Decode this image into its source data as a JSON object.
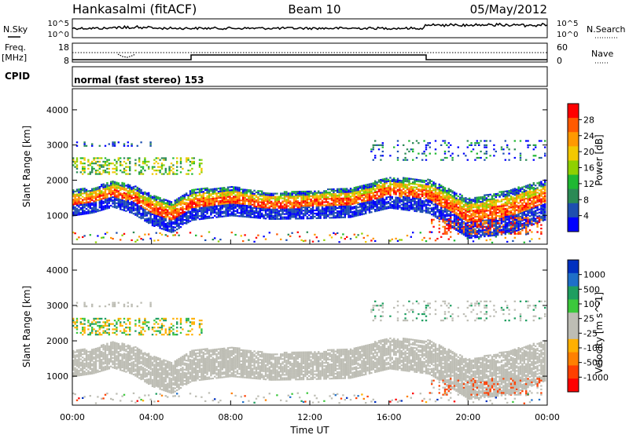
{
  "header": {
    "station": "Hankasalmi (fitACF)",
    "beam": "Beam 10",
    "date": "05/May/2012"
  },
  "noise_panel": {
    "left_label": "N.Sky",
    "right_label": "N.Search",
    "left_ticks": [
      "10^5",
      "10^0"
    ],
    "right_ticks": [
      "10^5",
      "10^0"
    ]
  },
  "freq_panel": {
    "left_label_1": "Freq.",
    "left_label_2": "[MHz]",
    "right_label": "Nave",
    "left_ticks": [
      "18",
      "8"
    ],
    "right_ticks": [
      "60",
      "0"
    ]
  },
  "cpid": {
    "label": "CPID",
    "text": "normal (fast stereo) 153"
  },
  "axes": {
    "ylabel": "Slant Range [km]",
    "xlabel": "Time UT",
    "yticks": [
      "4000",
      "3000",
      "2000",
      "1000"
    ],
    "xticks": [
      "00:00",
      "04:00",
      "08:00",
      "12:00",
      "16:00",
      "20:00",
      "00:00"
    ]
  },
  "colors": {
    "ground_scatter": "#bdbdb4"
  },
  "chart_data": [
    {
      "type": "heatmap",
      "name": "power",
      "xlabel": "Time UT",
      "ylabel": "Slant Range [km]",
      "xlim_hours": [
        0,
        24
      ],
      "ylim": [
        180,
        4600
      ],
      "colorbar": {
        "label": "Power [dB]",
        "ticks": [
          "28",
          "24",
          "20",
          "16",
          "12",
          "8",
          "4"
        ],
        "colors": [
          "#ff0000",
          "#ff5a00",
          "#ff9900",
          "#f2c800",
          "#8fd000",
          "#1fb832",
          "#2b8a55",
          "#1e4fb0",
          "#0000ff"
        ]
      },
      "main_band": [
        {
          "t": 0,
          "range": 1500,
          "width": 300
        },
        {
          "t": 1,
          "range": 1550,
          "width": 280
        },
        {
          "t": 2,
          "range": 1750,
          "width": 300
        },
        {
          "t": 3,
          "range": 1600,
          "width": 320
        },
        {
          "t": 4,
          "range": 1300,
          "width": 350
        },
        {
          "t": 5,
          "range": 1100,
          "width": 350
        },
        {
          "t": 6,
          "range": 1450,
          "width": 350
        },
        {
          "t": 8,
          "range": 1550,
          "width": 330
        },
        {
          "t": 10,
          "range": 1400,
          "width": 300
        },
        {
          "t": 12,
          "range": 1450,
          "width": 320
        },
        {
          "t": 14,
          "range": 1500,
          "width": 330
        },
        {
          "t": 16,
          "range": 1800,
          "width": 350
        },
        {
          "t": 18,
          "range": 1700,
          "width": 380
        },
        {
          "t": 20,
          "range": 1100,
          "width": 450
        },
        {
          "t": 22,
          "range": 1300,
          "width": 500
        },
        {
          "t": 24,
          "range": 1650,
          "width": 450
        }
      ]
    },
    {
      "type": "heatmap",
      "name": "velocity",
      "xlabel": "Time UT",
      "ylabel": "Slant Range [km]",
      "xlim_hours": [
        0,
        24
      ],
      "ylim": [
        180,
        4600
      ],
      "colorbar": {
        "label": "Velocity [m s^-1]",
        "ticks": [
          "1000",
          "500",
          "100",
          "25",
          "-25",
          "-100",
          "-500",
          "-1000"
        ],
        "colors": [
          "#0030c0",
          "#1e6fc8",
          "#1e9e60",
          "#3cc83c",
          "#bdbdb4",
          "#bdbdb4",
          "#ffb000",
          "#ff8000",
          "#ff4000",
          "#ff0000"
        ]
      }
    }
  ]
}
